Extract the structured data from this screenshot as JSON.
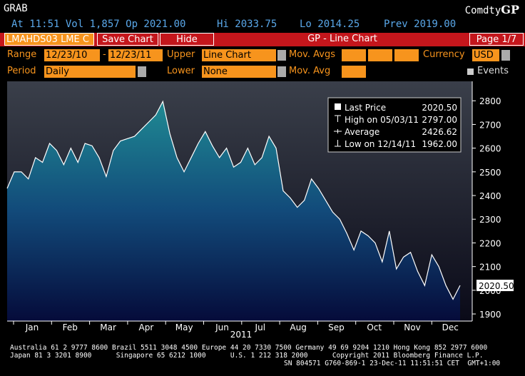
{
  "header": {
    "ticker": "GRAB",
    "source": "Comdty",
    "source_function": "GP",
    "quote": "At 11:51 Vol 1,857 Op 2021.00",
    "high": "Hi 2033.75",
    "low": "Lo 2014.25",
    "prev": "Prev 2019.00"
  },
  "toolbar": {
    "security": "LMAHDS03 LME C",
    "save": "Save Chart",
    "hide": "Hide",
    "title": "GP - Line Chart",
    "page": "Page 1/7"
  },
  "controls": {
    "range_label": "Range",
    "range_start": "12/23/10",
    "range_sep": "-",
    "range_end": "12/23/11",
    "upper_label": "Upper",
    "upper_value": "Line Chart",
    "mov_avgs_label": "Mov. Avgs",
    "currency_label": "Currency",
    "currency_value": "USD",
    "period_label": "Period",
    "period_value": "Daily",
    "lower_label": "Lower",
    "lower_value": "None",
    "mov_avg_label": "Mov. Avg",
    "events_label": "Events"
  },
  "chart_data": {
    "type": "line",
    "x_labels": [
      "Jan",
      "Feb",
      "Mar",
      "Apr",
      "May",
      "Jun",
      "Jul",
      "Aug",
      "Sep",
      "Oct",
      "Nov",
      "Dec"
    ],
    "x_title": "2011",
    "series": [
      {
        "name": "Last Price",
        "color": "#ffffff",
        "values": [
          2430,
          2500,
          2500,
          2470,
          2560,
          2540,
          2620,
          2590,
          2530,
          2600,
          2540,
          2620,
          2610,
          2560,
          2480,
          2590,
          2630,
          2640,
          2650,
          2680,
          2710,
          2740,
          2797,
          2660,
          2560,
          2500,
          2560,
          2620,
          2670,
          2610,
          2560,
          2600,
          2520,
          2540,
          2600,
          2530,
          2560,
          2650,
          2600,
          2420,
          2390,
          2350,
          2380,
          2470,
          2430,
          2380,
          2330,
          2300,
          2240,
          2170,
          2250,
          2230,
          2200,
          2120,
          2250,
          2090,
          2140,
          2160,
          2080,
          2020,
          2150,
          2100,
          2020,
          1962,
          2020.5
        ]
      }
    ],
    "ylim": [
      1870,
      2870
    ],
    "yticks": [
      1900,
      2000,
      2100,
      2200,
      2300,
      2400,
      2500,
      2600,
      2700,
      2800
    ],
    "stats": {
      "names": [
        "Last Price",
        "High on 05/03/11",
        "Average",
        "Low on 12/14/11"
      ],
      "values": [
        2020.5,
        2797,
        2426.62,
        1962
      ],
      "value_labels": [
        "2020.50",
        "2797.00",
        "2426.62",
        "1962.00"
      ]
    }
  },
  "footer": {
    "line1": "Australia 61 2 9777 8600 Brazil 5511 3048 4500 Europe 44 20 7330 7500 Germany 49 69 9204 1210 Hong Kong 852 2977 6000",
    "line2": "Japan 81 3 3201 8900      Singapore 65 6212 1000      U.S. 1 212 318 2000      Copyright 2011 Bloomberg Finance L.P.",
    "line3": "SN 804571 G760-869-1 23-Dec-11 11:51:51 CET  GMT+1:00"
  }
}
